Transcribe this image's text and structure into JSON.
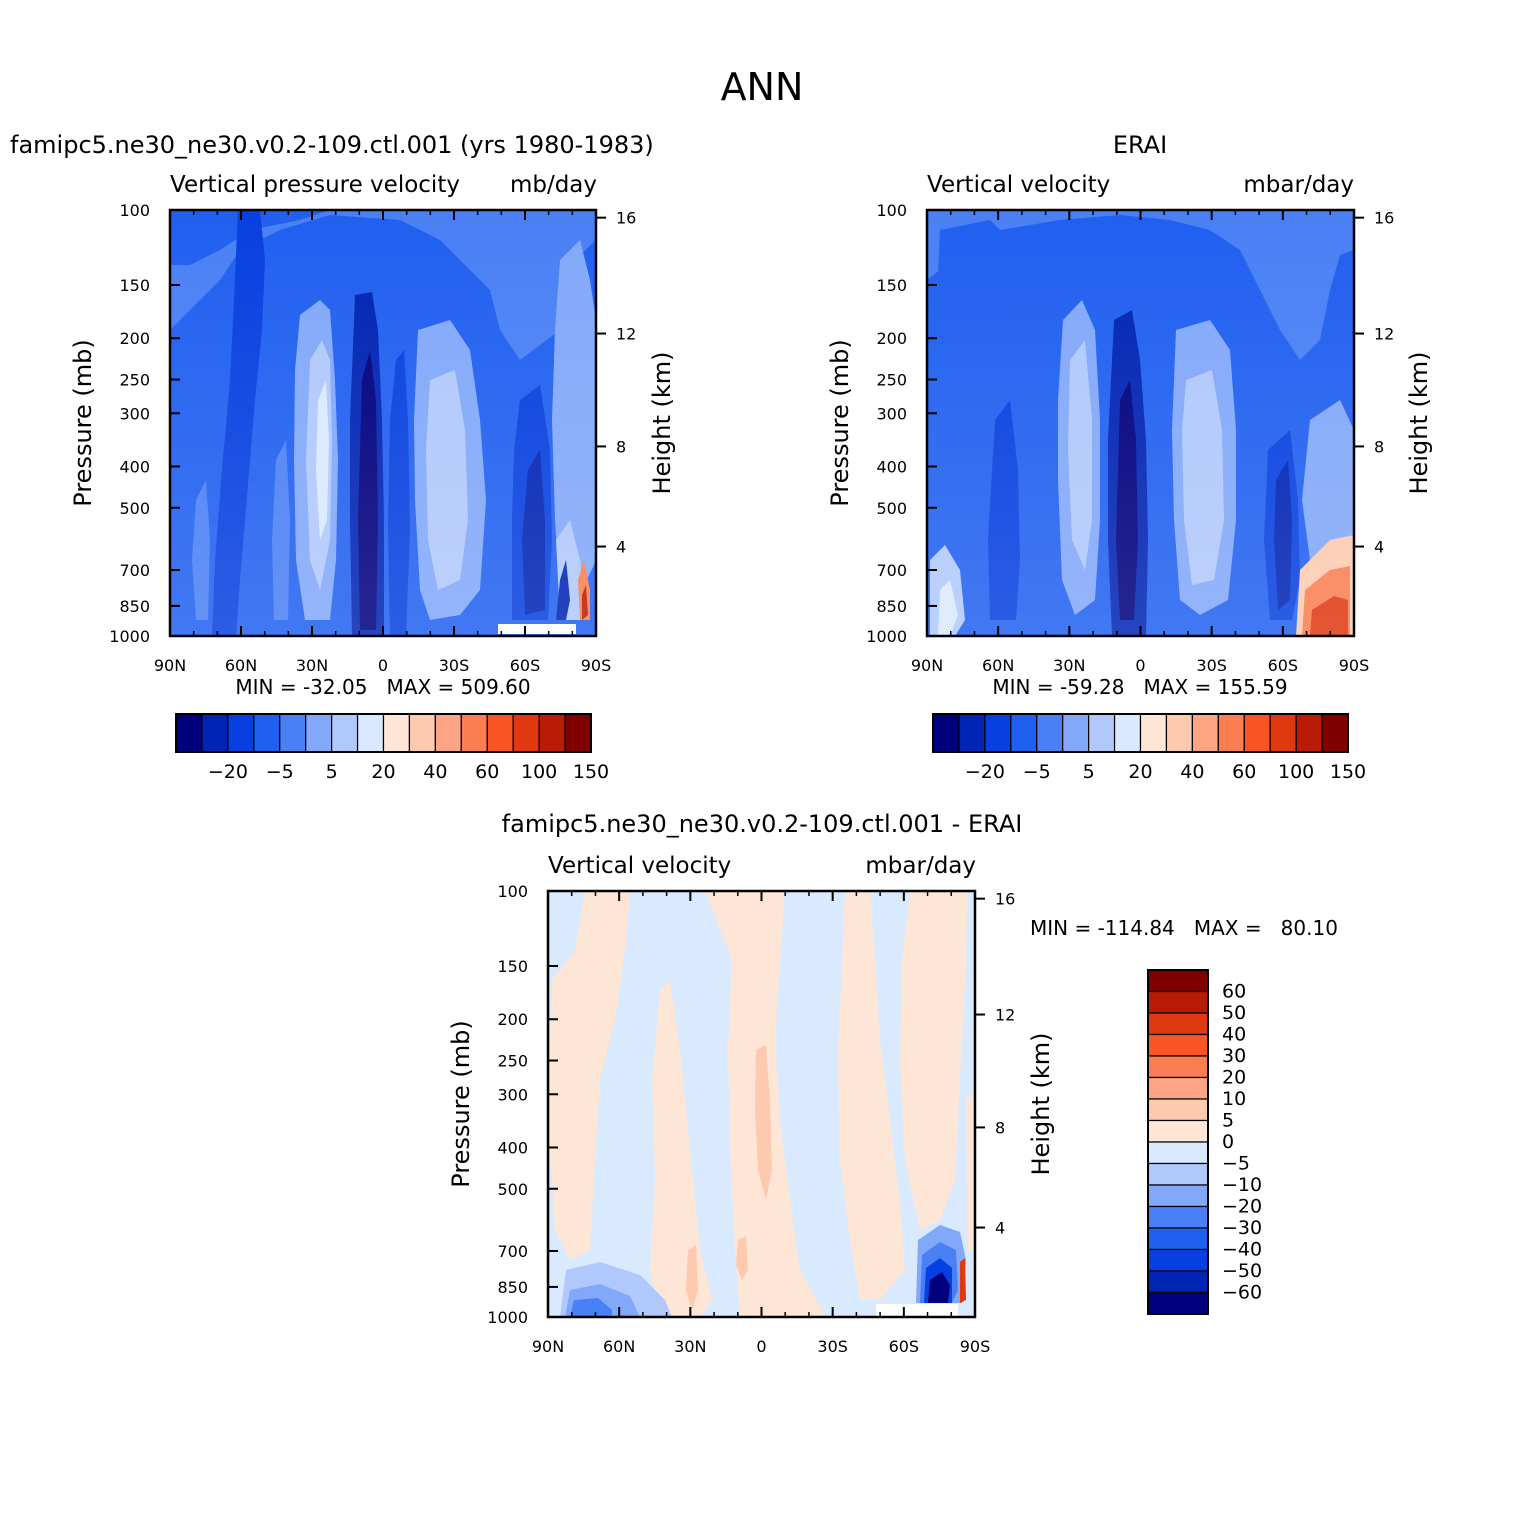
{
  "page_title": "ANN",
  "chart_data": [
    {
      "type": "heatmap",
      "title": "famipc5.ne30_ne30.v0.2-109.ctl.001 (yrs 1980-1983)",
      "subtitle_left": "Vertical pressure velocity",
      "subtitle_right": "mb/day",
      "xlabel": "",
      "ylabel": "Pressure (mb)",
      "ylabel_right": "Height (km)",
      "x_ticks": [
        "90N",
        "60N",
        "30N",
        "0",
        "30S",
        "60S",
        "90S"
      ],
      "y_ticks": [
        "100",
        "150",
        "200",
        "250",
        "300",
        "400",
        "500",
        "700",
        "850",
        "1000"
      ],
      "y_ticks_right": [
        "16",
        "12",
        "8",
        "4"
      ],
      "ylim": [
        1000,
        100
      ],
      "stats": "MIN = -32.05   MAX = 509.60",
      "min": -32.05,
      "max": 509.6,
      "levels": [
        -40,
        -30,
        -20,
        -10,
        -5,
        0,
        5,
        10,
        20,
        30,
        40,
        50,
        60,
        80,
        100,
        120,
        150
      ],
      "colorbar_labels": [
        "-20",
        "-5",
        "5",
        "20",
        "40",
        "60",
        "100",
        "150"
      ],
      "legend_position": "bottom"
    },
    {
      "type": "heatmap",
      "title": "ERAI",
      "subtitle_left": "Vertical velocity",
      "subtitle_right": "mbar/day",
      "xlabel": "",
      "ylabel": "Pressure (mb)",
      "ylabel_right": "Height (km)",
      "x_ticks": [
        "90N",
        "60N",
        "30N",
        "0",
        "30S",
        "60S",
        "90S"
      ],
      "y_ticks": [
        "100",
        "150",
        "200",
        "250",
        "300",
        "400",
        "500",
        "700",
        "850",
        "1000"
      ],
      "y_ticks_right": [
        "16",
        "12",
        "8",
        "4"
      ],
      "ylim": [
        1000,
        100
      ],
      "stats": "MIN = -59.28   MAX = 155.59",
      "min": -59.28,
      "max": 155.59,
      "levels": [
        -40,
        -30,
        -20,
        -10,
        -5,
        0,
        5,
        10,
        20,
        30,
        40,
        50,
        60,
        80,
        100,
        120,
        150
      ],
      "colorbar_labels": [
        "-20",
        "-5",
        "5",
        "20",
        "40",
        "60",
        "100",
        "150"
      ],
      "legend_position": "bottom"
    },
    {
      "type": "heatmap",
      "title": "famipc5.ne30_ne30.v0.2-109.ctl.001 - ERAI",
      "subtitle_left": "Vertical velocity",
      "subtitle_right": "mbar/day",
      "xlabel": "",
      "ylabel": "Pressure (mb)",
      "ylabel_right": "Height (km)",
      "x_ticks": [
        "90N",
        "60N",
        "30N",
        "0",
        "30S",
        "60S",
        "90S"
      ],
      "y_ticks": [
        "100",
        "150",
        "200",
        "250",
        "300",
        "400",
        "500",
        "700",
        "850",
        "1000"
      ],
      "y_ticks_right": [
        "16",
        "12",
        "8",
        "4"
      ],
      "ylim": [
        1000,
        100
      ],
      "stats": "MIN = -114.84   MAX =   80.10",
      "min": -114.84,
      "max": 80.1,
      "levels": [
        -60,
        -50,
        -40,
        -30,
        -20,
        -10,
        -5,
        0,
        5,
        10,
        20,
        30,
        40,
        50,
        60
      ],
      "colorbar_labels": [
        "60",
        "50",
        "40",
        "30",
        "20",
        "10",
        "5",
        "0",
        "-5",
        "-10",
        "-20",
        "-30",
        "-40",
        "-50",
        "-60"
      ],
      "legend_position": "right"
    }
  ],
  "colors": {
    "palette": [
      "#00007f",
      "#0024b4",
      "#0740e0",
      "#2060f0",
      "#4a80f5",
      "#82a8fa",
      "#b0c8fc",
      "#d9e9fe",
      "#fde6d6",
      "#fdcab0",
      "#fca483",
      "#fa7e52",
      "#f85424",
      "#e03810",
      "#b81c04",
      "#800000"
    ],
    "background": "#ffffff"
  }
}
